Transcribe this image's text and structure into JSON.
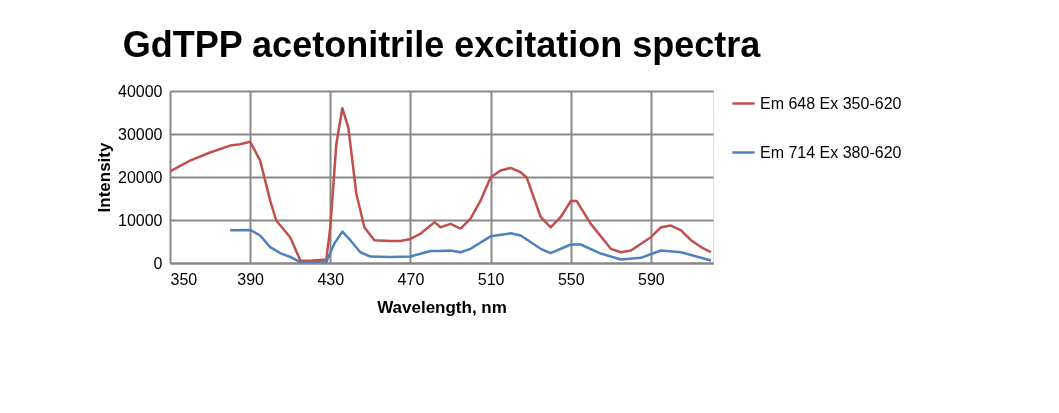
{
  "chart_data": {
    "type": "line",
    "title": "GdTPP acetonitrile excitation spectra",
    "xlabel": "Wavelength, nm",
    "ylabel": "Intensity",
    "xlim": [
      350,
      621
    ],
    "xticks": [
      350,
      390,
      430,
      470,
      510,
      550,
      590
    ],
    "ylim": [
      0,
      40000
    ],
    "yticks": [
      0,
      10000,
      20000,
      30000,
      40000
    ],
    "grid": true,
    "legend": "right",
    "marker": "none",
    "line_style": "solid",
    "series": [
      {
        "name": "Em 648  Ex 350-620",
        "color": "#c0504d",
        "x": [
          350,
          360,
          370,
          380,
          385,
          390,
          395,
          400,
          403,
          410,
          415,
          420,
          428,
          430,
          433,
          436,
          439,
          443,
          447,
          452,
          460,
          465,
          470,
          475,
          480,
          482,
          485,
          490,
          495,
          500,
          505,
          510,
          515,
          520,
          525,
          528,
          535,
          540,
          545,
          550,
          553,
          560,
          570,
          575,
          580,
          590,
          595,
          600,
          605,
          610,
          615,
          620
        ],
        "values": [
          21300,
          23800,
          25700,
          27300,
          27600,
          28200,
          23800,
          14500,
          9900,
          6000,
          600,
          500,
          800,
          8300,
          27600,
          36000,
          31500,
          16100,
          8300,
          5300,
          5100,
          5100,
          5600,
          6800,
          8700,
          9500,
          8300,
          9100,
          8000,
          10300,
          14500,
          19900,
          21500,
          22100,
          21100,
          19900,
          10700,
          8300,
          10700,
          14400,
          14400,
          9100,
          3300,
          2500,
          2900,
          6000,
          8300,
          8700,
          7600,
          5300,
          3700,
          2500
        ]
      },
      {
        "name": "Em 714  Ex 380-620",
        "color": "#4f81bd",
        "x": [
          380,
          390,
          395,
          400,
          405,
          410,
          415,
          420,
          428,
          432,
          436,
          440,
          445,
          450,
          460,
          470,
          480,
          485,
          490,
          495,
          500,
          510,
          520,
          525,
          535,
          540,
          550,
          555,
          565,
          575,
          585,
          595,
          605,
          620
        ],
        "values": [
          7600,
          7700,
          6400,
          3700,
          2300,
          1400,
          200,
          200,
          200,
          4500,
          7300,
          5300,
          2500,
          1500,
          1400,
          1500,
          2800,
          2800,
          2900,
          2500,
          3300,
          6200,
          6900,
          6400,
          3300,
          2300,
          4300,
          4300,
          2200,
          800,
          1200,
          2900,
          2500,
          600
        ]
      }
    ]
  }
}
